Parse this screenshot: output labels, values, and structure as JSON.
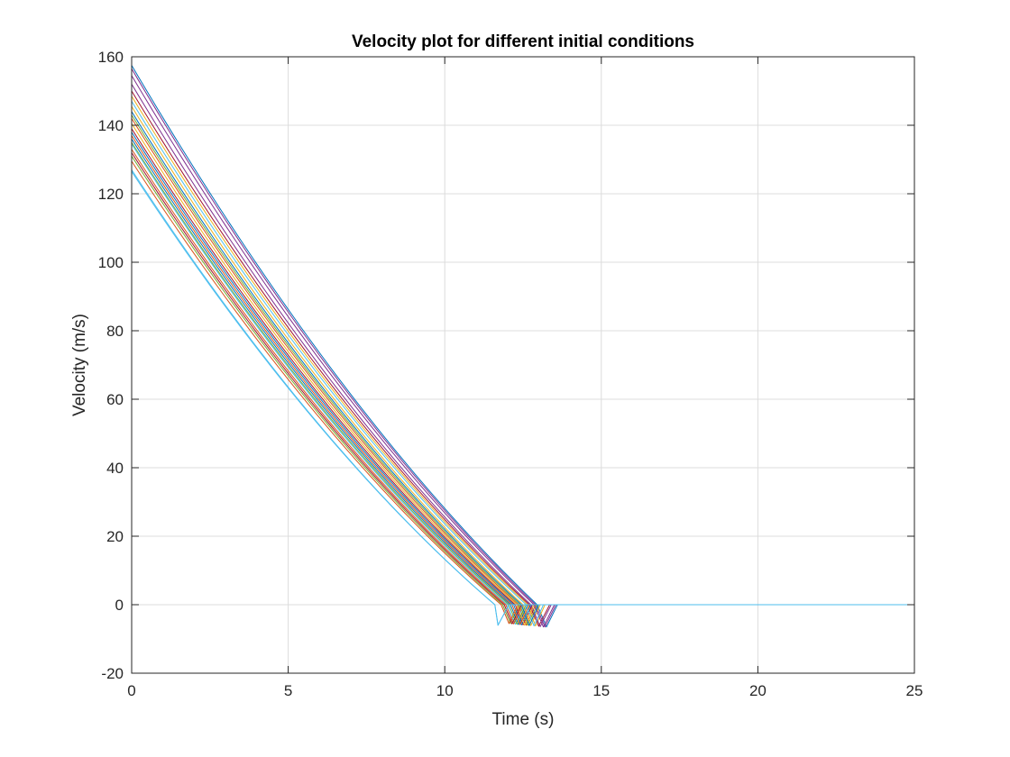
{
  "chart_data": {
    "type": "line",
    "title": "Velocity plot for different initial conditions",
    "xlabel": "Time (s)",
    "ylabel": "Velocity (m/s)",
    "xlim": [
      0,
      25
    ],
    "ylim": [
      -20,
      160
    ],
    "xticks": [
      0,
      5,
      10,
      15,
      20,
      25
    ],
    "yticks": [
      -20,
      0,
      20,
      40,
      60,
      80,
      100,
      120,
      140,
      160
    ],
    "grid": true,
    "legend": "none",
    "t_end": 25,
    "series": [
      {
        "color": "#0072bd",
        "v0": 157.5,
        "t_zero": 12.95,
        "t_min": 13.25,
        "v_min": -6.5,
        "t_recover": 13.6
      },
      {
        "color": "#d95319",
        "v0": 142.0,
        "t_zero": 12.35,
        "t_min": 12.6,
        "v_min": -6.0,
        "t_recover": 12.9
      },
      {
        "color": "#edb120",
        "v0": 148.5,
        "t_zero": 12.65,
        "t_min": 12.9,
        "v_min": -6.2,
        "t_recover": 13.2
      },
      {
        "color": "#7e2f8e",
        "v0": 156.5,
        "t_zero": 12.9,
        "t_min": 13.2,
        "v_min": -6.5,
        "t_recover": 13.55
      },
      {
        "color": "#77ac30",
        "v0": 131.0,
        "t_zero": 11.85,
        "t_min": 12.1,
        "v_min": -5.5,
        "t_recover": 12.4
      },
      {
        "color": "#4dbeee",
        "v0": 134.5,
        "t_zero": 12.0,
        "t_min": 12.25,
        "v_min": -5.7,
        "t_recover": 12.55
      },
      {
        "color": "#a2142f",
        "v0": 139.0,
        "t_zero": 12.25,
        "t_min": 12.5,
        "v_min": -5.9,
        "t_recover": 12.8
      },
      {
        "color": "#0072bd",
        "v0": 136.0,
        "t_zero": 12.1,
        "t_min": 12.35,
        "v_min": -5.8,
        "t_recover": 12.65
      },
      {
        "color": "#d95319",
        "v0": 133.0,
        "t_zero": 11.95,
        "t_min": 12.2,
        "v_min": -5.6,
        "t_recover": 12.5
      },
      {
        "color": "#edb120",
        "v0": 145.5,
        "t_zero": 12.5,
        "t_min": 12.75,
        "v_min": -6.1,
        "t_recover": 13.05
      },
      {
        "color": "#7e2f8e",
        "v0": 152.0,
        "t_zero": 12.75,
        "t_min": 13.05,
        "v_min": -6.4,
        "t_recover": 13.4
      },
      {
        "color": "#77ac30",
        "v0": 143.0,
        "t_zero": 12.4,
        "t_min": 12.65,
        "v_min": -6.0,
        "t_recover": 12.95
      },
      {
        "color": "#4dbeee",
        "v0": 126.5,
        "t_zero": 11.6,
        "t_min": 11.7,
        "v_min": -6.0,
        "t_recover": 12.05
      },
      {
        "color": "#a2142f",
        "v0": 150.0,
        "t_zero": 12.7,
        "t_min": 13.0,
        "v_min": -6.3,
        "t_recover": 13.35
      },
      {
        "color": "#0072bd",
        "v0": 138.0,
        "t_zero": 12.2,
        "t_min": 12.45,
        "v_min": -5.9,
        "t_recover": 12.75
      },
      {
        "color": "#d95319",
        "v0": 129.5,
        "t_zero": 11.8,
        "t_min": 12.05,
        "v_min": -5.5,
        "t_recover": 12.35
      },
      {
        "color": "#edb120",
        "v0": 140.5,
        "t_zero": 12.3,
        "t_min": 12.55,
        "v_min": -6.0,
        "t_recover": 12.85
      },
      {
        "color": "#7e2f8e",
        "v0": 154.5,
        "t_zero": 12.85,
        "t_min": 13.15,
        "v_min": -6.5,
        "t_recover": 13.5
      },
      {
        "color": "#77ac30",
        "v0": 135.0,
        "t_zero": 12.05,
        "t_min": 12.3,
        "v_min": -5.7,
        "t_recover": 12.6
      },
      {
        "color": "#4dbeee",
        "v0": 147.0,
        "t_zero": 12.6,
        "t_min": 12.85,
        "v_min": -6.2,
        "t_recover": 13.15
      },
      {
        "color": "#a2142f",
        "v0": 132.0,
        "t_zero": 11.9,
        "t_min": 12.15,
        "v_min": -5.6,
        "t_recover": 12.45
      },
      {
        "color": "#0072bd",
        "v0": 144.0,
        "t_zero": 12.45,
        "t_min": 12.7,
        "v_min": -6.1,
        "t_recover": 13.0
      },
      {
        "color": "#d95319",
        "v0": 137.0,
        "t_zero": 12.15,
        "t_min": 12.4,
        "v_min": -5.8,
        "t_recover": 12.7
      },
      {
        "color": "#4dbeee",
        "v0": 127.0,
        "t_zero": 11.6,
        "t_min": 11.7,
        "v_min": -6.0,
        "t_recover": 12.05
      }
    ]
  }
}
